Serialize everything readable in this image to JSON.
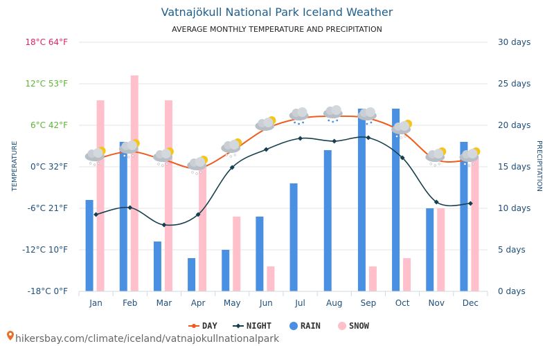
{
  "chart_data": {
    "type": "bar",
    "title": "Vatnajökull National Park Iceland Weather",
    "subtitle": "AVERAGE MONTHLY TEMPERATURE AND PRECIPITATION",
    "categories": [
      "Jan",
      "Feb",
      "Mar",
      "Apr",
      "May",
      "Jun",
      "Jul",
      "Aug",
      "Sep",
      "Oct",
      "Nov",
      "Dec"
    ],
    "ylabel_left": "TEMPERATURE",
    "ylabel_right": "PRECIPITATION",
    "y_left_ticks": [
      {
        "value": 18,
        "label": "18°C 64°F",
        "color": "#e0245e"
      },
      {
        "value": 12,
        "label": "12°C 53°F",
        "color": "#5fb336"
      },
      {
        "value": 6,
        "label": "6°C 42°F",
        "color": "#5fb336"
      },
      {
        "value": 0,
        "label": "0°C 32°F",
        "color": "#1f4e79"
      },
      {
        "value": -6,
        "label": "-6°C 21°F",
        "color": "#1f4e79"
      },
      {
        "value": -12,
        "label": "-12°C 10°F",
        "color": "#1f4e79"
      },
      {
        "value": -18,
        "label": "-18°C 0°F",
        "color": "#1f4e79"
      }
    ],
    "y_left_range": [
      -18,
      18
    ],
    "y_right_ticks": [
      {
        "value": 30,
        "label": "30 days"
      },
      {
        "value": 25,
        "label": "25 days"
      },
      {
        "value": 20,
        "label": "20 days"
      },
      {
        "value": 15,
        "label": "15 days"
      },
      {
        "value": 10,
        "label": "10 days"
      },
      {
        "value": 5,
        "label": "5 days"
      },
      {
        "value": 0,
        "label": "0 days"
      }
    ],
    "y_right_range": [
      0,
      30
    ],
    "series": [
      {
        "name": "DAY",
        "kind": "line",
        "axis": "left",
        "color": "#f05a1a",
        "values": [
          1.1,
          2.2,
          1.0,
          -0.2,
          2.3,
          5.5,
          7.0,
          7.3,
          7.0,
          5.0,
          1.0,
          1.0
        ]
      },
      {
        "name": "NIGHT",
        "kind": "line",
        "axis": "left",
        "color": "#173f4f",
        "values": [
          -6.9,
          -5.9,
          -8.4,
          -6.9,
          -0.1,
          2.5,
          4.1,
          3.7,
          4.2,
          1.3,
          -5.1,
          -5.3
        ]
      },
      {
        "name": "RAIN",
        "kind": "bar",
        "axis": "right",
        "color": "#4a90e2",
        "values": [
          11,
          18,
          6,
          4,
          5,
          9,
          13,
          17,
          22,
          22,
          10,
          18
        ]
      },
      {
        "name": "SNOW",
        "kind": "bar",
        "axis": "right",
        "color": "#ffc0cb",
        "values": [
          23,
          26,
          23,
          15,
          9,
          3,
          0,
          0,
          3,
          4,
          10,
          16
        ]
      }
    ],
    "weather_icons": [
      "snow-cloud",
      "snow-cloud",
      "snow-cloud",
      "snow-cloud",
      "snow-cloud",
      "partly-cloudy",
      "rain-cloud",
      "rain-cloud",
      "rain-cloud",
      "snow-cloud",
      "snow-cloud",
      "snow-cloud"
    ],
    "legend_position": "bottom-center"
  },
  "source_text": "hikersbay.com/climate/iceland/vatnajokullnationalpark",
  "colors": {
    "title": "#1f5f8b",
    "axis_text": "#1f4e79",
    "grid": "#e6e6e6"
  }
}
